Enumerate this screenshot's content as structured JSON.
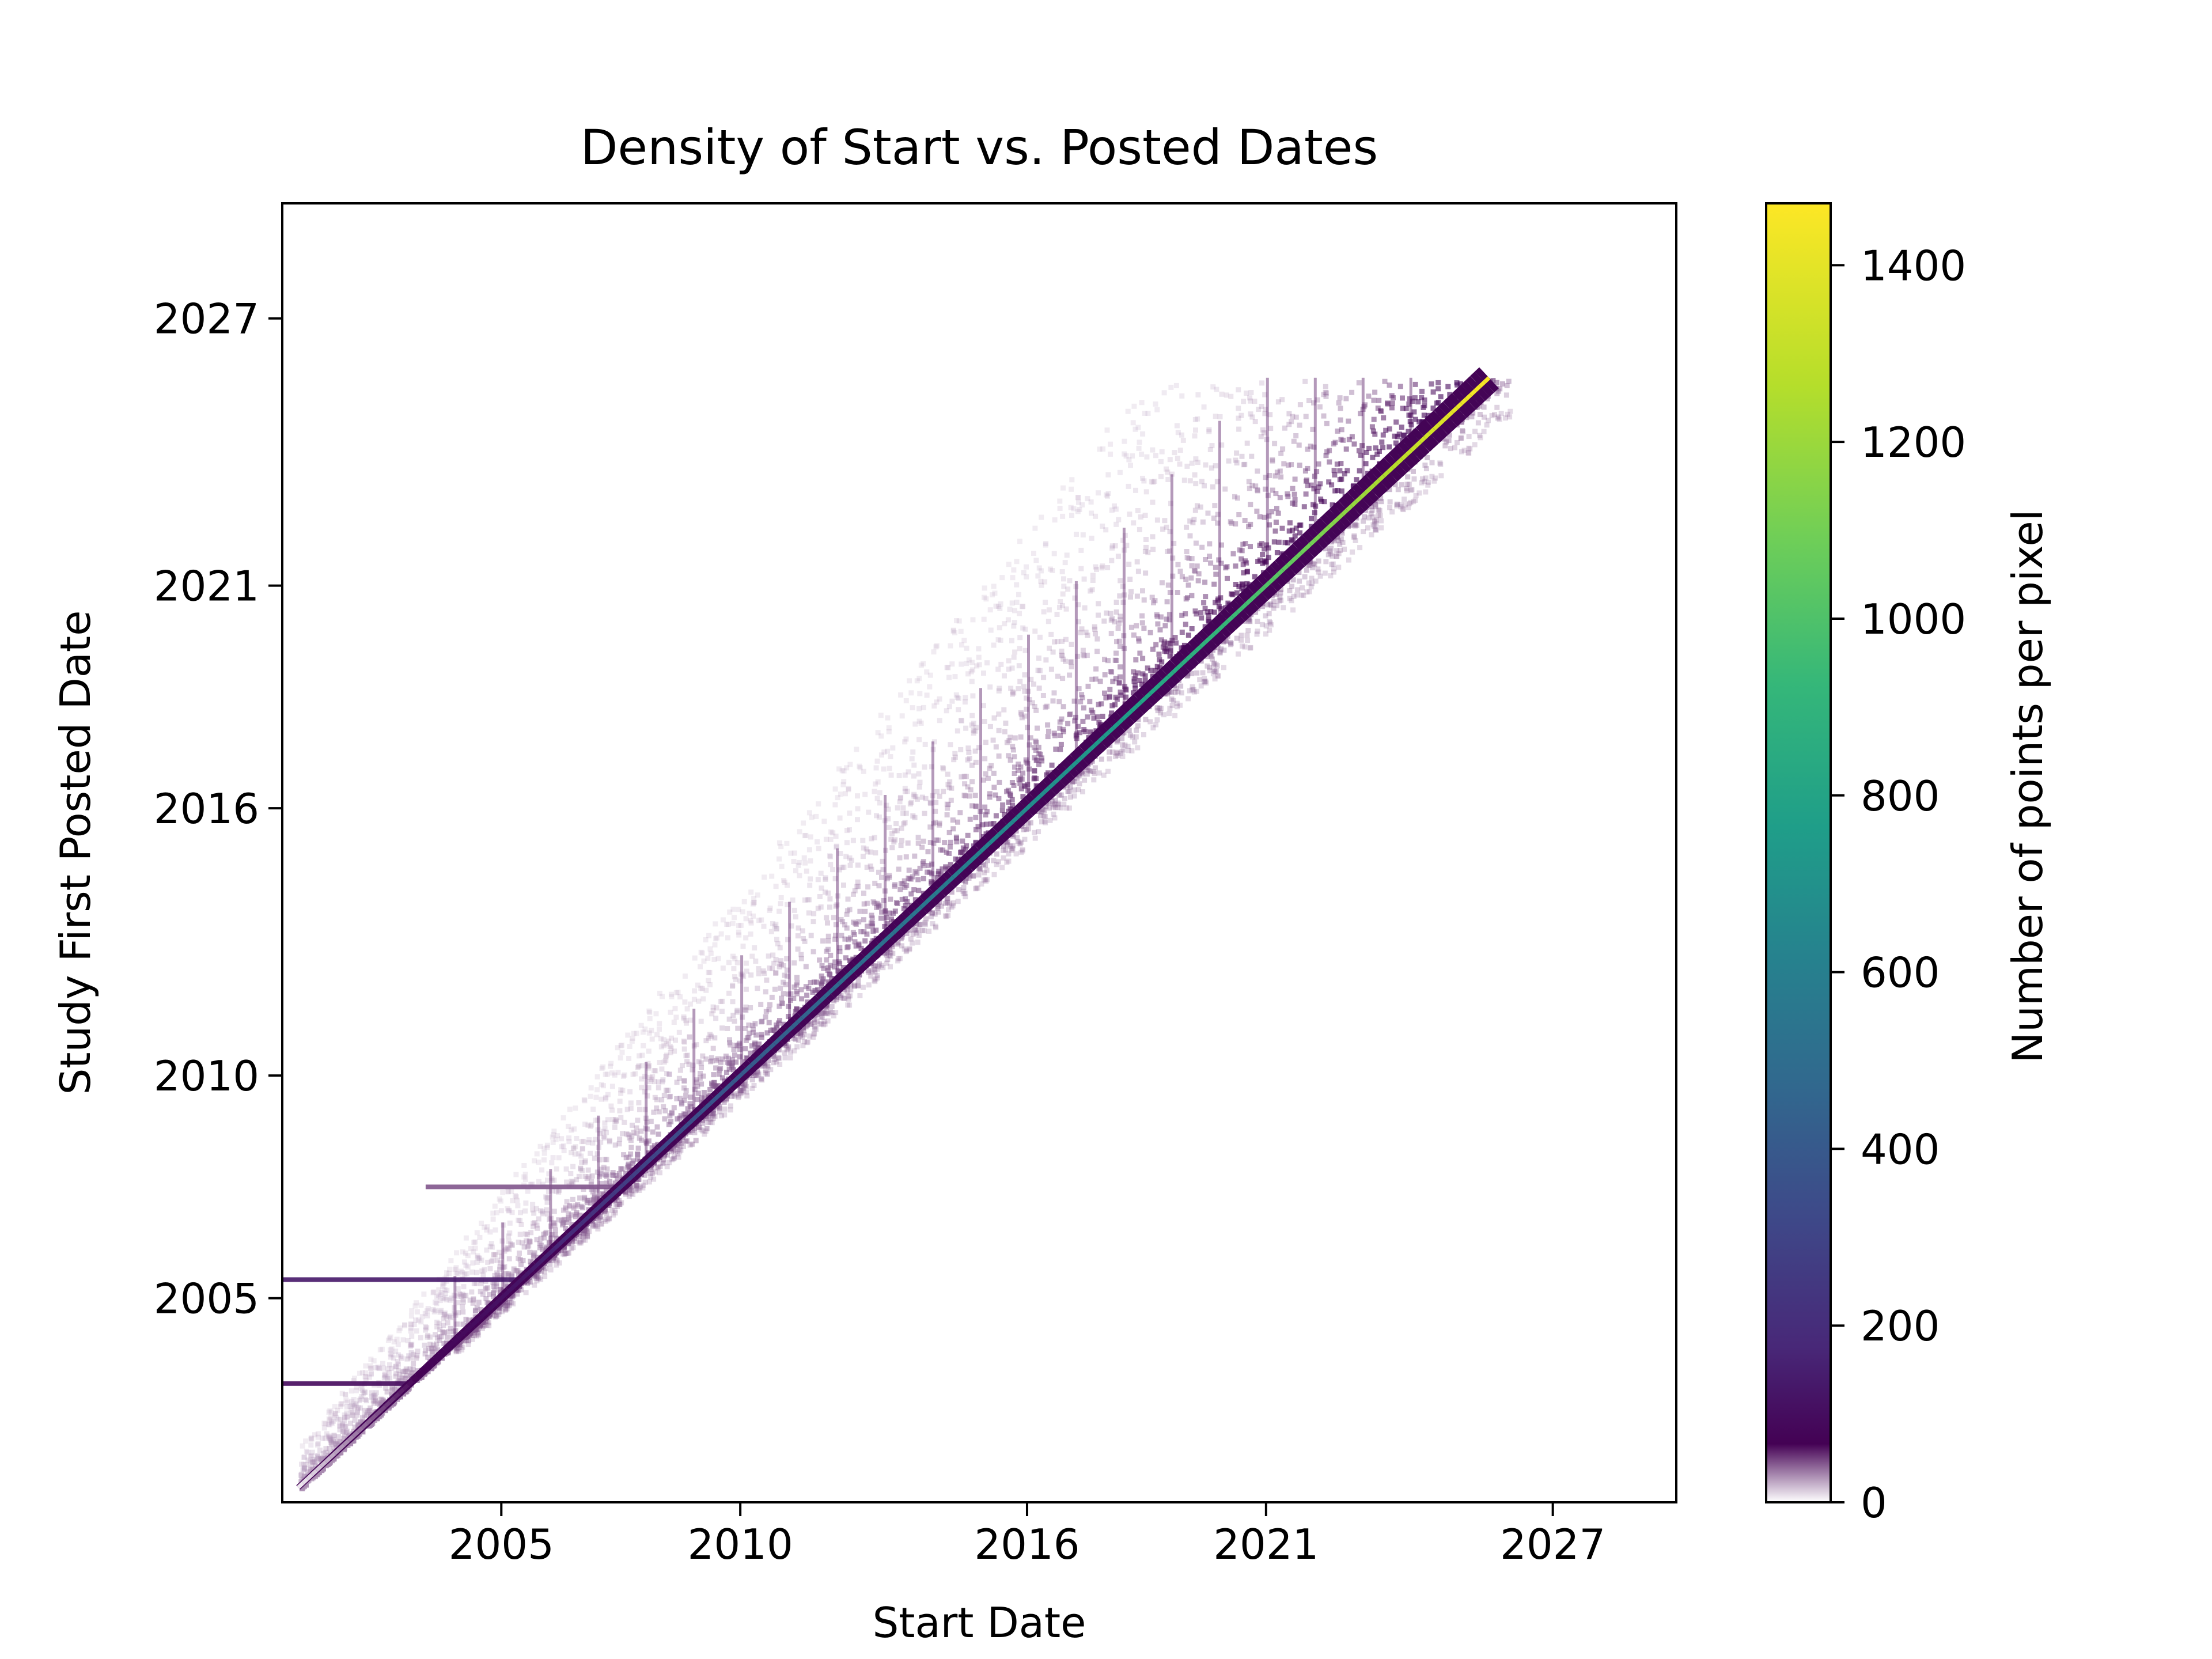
{
  "chart_data": {
    "type": "heatmap",
    "title": "Density of Start vs. Posted Dates",
    "xlabel": "Start Date",
    "ylabel": "Study First Posted Date",
    "x_ticks": [
      "2005",
      "2010",
      "2016",
      "2021",
      "2027"
    ],
    "y_ticks": [
      "2005",
      "2010",
      "2016",
      "2021",
      "2027"
    ],
    "xlim": [
      "2000-06-01",
      "2029-08-01"
    ],
    "ylim": [
      "2000-06-01",
      "2029-08-01"
    ],
    "grid": false,
    "colormap": "viridis",
    "background_color": "#ffffff",
    "colorbar": {
      "label": "Number of points per pixel",
      "ticks": [
        "0",
        "200",
        "400",
        "600",
        "800",
        "1000",
        "1200",
        "1400"
      ],
      "tick_values": [
        0,
        200,
        400,
        600,
        800,
        1000,
        1200,
        1400
      ],
      "range": [
        0,
        1470
      ],
      "colors": [
        "#ffffff",
        "#440154",
        "#482878",
        "#3e4989",
        "#31688e",
        "#26828e",
        "#1f9e89",
        "#35b779",
        "#6ece58",
        "#b5de2b",
        "#fde725"
      ]
    },
    "diagonal": {
      "description_points": [
        {
          "start": "2000-10-01",
          "posted": "2000-10-01",
          "count": 5
        },
        {
          "start": "2005-06-01",
          "posted": "2005-06-01",
          "count": 120
        },
        {
          "start": "2008-01-01",
          "posted": "2008-01-01",
          "count": 300
        },
        {
          "start": "2010-06-01",
          "posted": "2010-06-01",
          "count": 420
        },
        {
          "start": "2013-01-01",
          "posted": "2013-01-01",
          "count": 520
        },
        {
          "start": "2015-06-01",
          "posted": "2015-06-01",
          "count": 640
        },
        {
          "start": "2018-01-01",
          "posted": "2018-01-01",
          "count": 760
        },
        {
          "start": "2020-06-01",
          "posted": "2020-06-01",
          "count": 950
        },
        {
          "start": "2023-01-01",
          "posted": "2023-01-01",
          "count": 1200
        },
        {
          "start": "2025-06-01",
          "posted": "2025-06-01",
          "count": 1450
        }
      ],
      "posted_max": "2025-09-01"
    },
    "horizontal_bands": [
      {
        "posted": "2005-06-01",
        "start_from": "2000-06-01",
        "start_to": "2005-06-01",
        "count": 100
      },
      {
        "posted": "2003-02-01",
        "start_from": "2000-06-01",
        "start_to": "2003-02-01",
        "count": 60
      },
      {
        "posted": "2007-07-01",
        "start_from": "2003-06-01",
        "start_to": "2007-07-01",
        "count": 15
      }
    ]
  }
}
